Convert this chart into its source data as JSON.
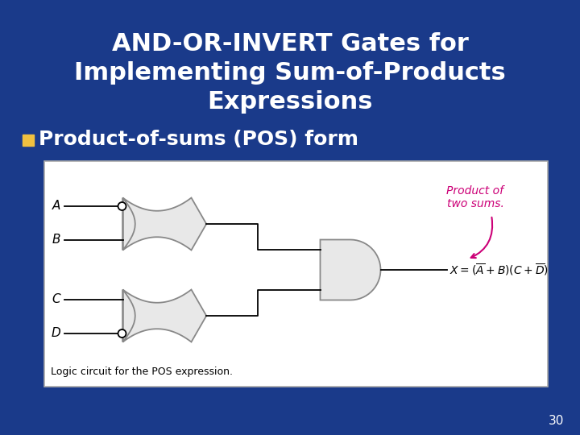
{
  "bg_color": "#1a3a8a",
  "title_lines": [
    "AND-OR-INVERT Gates for",
    "Implementing Sum-of-Products",
    "Expressions"
  ],
  "title_color": "#ffffff",
  "title_fontsize": 22,
  "bullet_text": "Product-of-sums (POS) form",
  "bullet_color": "#ffffff",
  "bullet_fontsize": 18,
  "bullet_marker_color": "#f0c040",
  "page_number": "30",
  "page_number_color": "#ffffff",
  "page_number_fontsize": 11,
  "diagram_bg": "#ffffff",
  "caption_text": "Logic circuit for the POS expression.",
  "annotation_text": "Product of\ntwo sums.",
  "annotation_color": "#cc0077",
  "gate_face": "#e8e8e8",
  "gate_edge": "#888888",
  "wire_color": "#000000",
  "label_color": "#000000"
}
